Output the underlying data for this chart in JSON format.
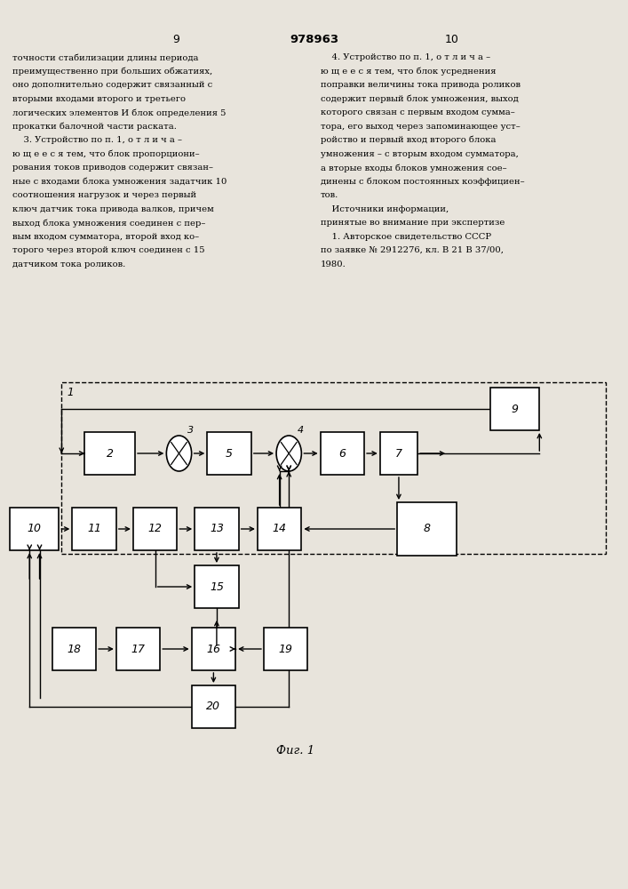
{
  "title": "978963",
  "caption": "Фиг. 1",
  "page_left": "9",
  "page_right": "10",
  "background_color": "#e8e4dc",
  "fig_width": 7.07,
  "fig_height": 10.0,
  "left_text": [
    "точности стабилизации длины периода",
    "преимущественно при больших обжатиях,",
    "оно дополнительно содержит связанный с",
    "вторыми входами второго и третьего",
    "логических элементов И блок определения 5",
    "прокатки балочной части раската.",
    "    3. Устройство по п. 1, о т л и ч а –",
    "ю щ е е с я тем, что блок пропорциони–",
    "рования токов приводов содержит связан–",
    "ные с входами блока умножения задатчик 10",
    "соотношения нагрузок и через первый",
    "ключ датчик тока привода валков, причем",
    "выход блока умножения соединен с пер–",
    "вым входом сумматора, второй вход ко–",
    "торого через второй ключ соединен с 15",
    "датчиком тока роликов."
  ],
  "right_text": [
    "    4. Устройство по п. 1, о т л и ч а –",
    "ю щ е е с я тем, что блок усреднения",
    "поправки величины тока привода роликов",
    "содержит первый блок умножения, выход",
    "которого связан с первым входом сумма–",
    "тора, его выход через запоминающее уст–",
    "ройство и первый вход второго блока",
    "умножения – с вторым входом сумматора,",
    "а вторые входы блоков умножения сое–",
    "динены с блоком постоянных коэффициен–",
    "тов.",
    "    Источники информации,",
    "принятые во внимание при экспертизе",
    "    1. Авторское свидетельство СССР",
    "по заявке № 2912276, кл. В 21 В 37/00,",
    "1980."
  ]
}
